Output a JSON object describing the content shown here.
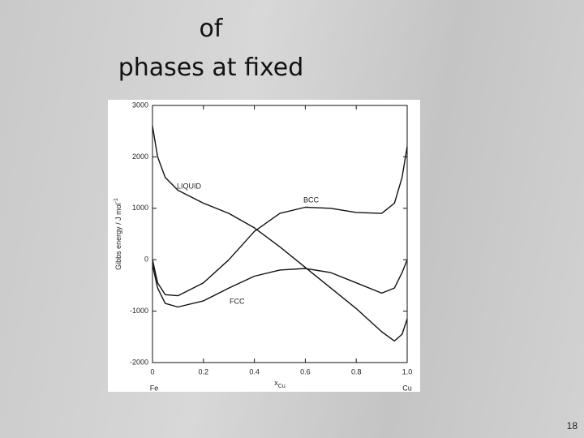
{
  "slide": {
    "title_lines": [
      "of",
      "phases at fixed"
    ],
    "page_number": "18"
  },
  "chart_data": {
    "type": "line",
    "xlabel": "x",
    "xlabel_sub": "Cu",
    "ylabel": "Gibbs energy / J mol",
    "ylabel_sup": "-1",
    "annotations": [
      "Fe",
      "Cu"
    ],
    "x": [
      0,
      0.02,
      0.05,
      0.1,
      0.2,
      0.3,
      0.4,
      0.5,
      0.6,
      0.7,
      0.8,
      0.9,
      0.95,
      0.98,
      1.0
    ],
    "series": [
      {
        "name": "LIQUID",
        "color": "#111111",
        "values": [
          2600,
          2000,
          1600,
          1350,
          1100,
          900,
          620,
          250,
          -150,
          -550,
          -950,
          -1400,
          -1580,
          -1450,
          -1150
        ]
      },
      {
        "name": "BCC",
        "color": "#111111",
        "values": [
          0,
          -450,
          -680,
          -700,
          -450,
          0,
          550,
          900,
          1020,
          1000,
          920,
          900,
          1100,
          1600,
          2200
        ]
      },
      {
        "name": "FCC",
        "color": "#111111",
        "values": [
          -100,
          -550,
          -850,
          -920,
          -800,
          -550,
          -320,
          -200,
          -170,
          -250,
          -450,
          -650,
          -550,
          -250,
          0
        ]
      }
    ],
    "xlim": [
      0,
      1
    ],
    "xticks": [
      0,
      0.2,
      0.4,
      0.6,
      0.8,
      {
        "value": 1,
        "label": "1.0"
      }
    ],
    "ylim": [
      -2000,
      3000
    ],
    "yticks": [
      -2000,
      -1000,
      0,
      1000,
      2000,
      3000
    ]
  }
}
